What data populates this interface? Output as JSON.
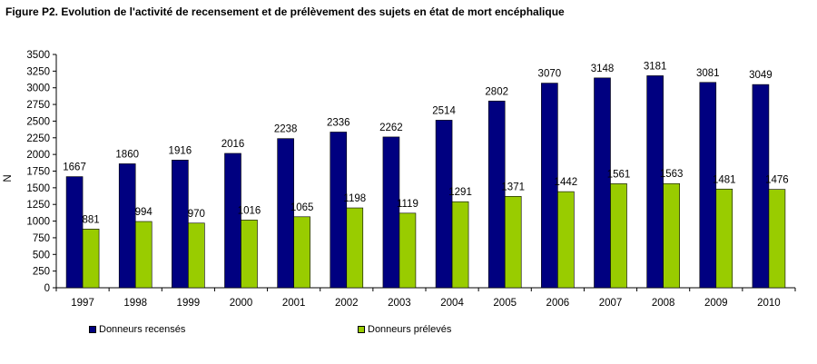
{
  "figure_title": "Figure P2. Evolution de l'activité de recensement et de prélèvement des sujets en état de mort encéphalique",
  "chart_data": {
    "type": "bar",
    "title": "Figure P2. Evolution de l'activité de recensement et de prélèvement des sujets en état de mort encéphalique",
    "xlabel": "",
    "ylabel": "N",
    "ylim": [
      0,
      3500
    ],
    "ytick_step": 250,
    "grid": false,
    "legend_position": "bottom",
    "categories": [
      "1997",
      "1998",
      "1999",
      "2000",
      "2001",
      "2002",
      "2003",
      "2004",
      "2005",
      "2006",
      "2007",
      "2008",
      "2009",
      "2010"
    ],
    "series": [
      {
        "name": "Donneurs recensés",
        "color": "#000080",
        "values": [
          1667,
          1860,
          1916,
          2016,
          2238,
          2336,
          2262,
          2514,
          2802,
          3070,
          3148,
          3181,
          3081,
          3049
        ]
      },
      {
        "name": "Donneurs prélevés",
        "color": "#99CC00",
        "values": [
          881,
          994,
          970,
          1016,
          1065,
          1198,
          1119,
          1291,
          1371,
          1442,
          1561,
          1563,
          1481,
          1476
        ]
      }
    ]
  }
}
